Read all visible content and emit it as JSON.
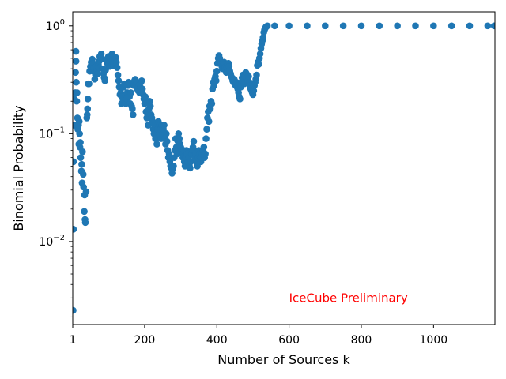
{
  "chart_data": {
    "type": "scatter",
    "xlabel": "Number of Sources k",
    "ylabel": "Binomial Probability",
    "xlim": [
      1,
      1170
    ],
    "ylim": [
      0.0017,
      1.35
    ],
    "yscale": "log",
    "x_ticks": [
      {
        "value": 1,
        "label": "1"
      },
      {
        "value": 200,
        "label": "200"
      },
      {
        "value": 400,
        "label": "400"
      },
      {
        "value": 600,
        "label": "600"
      },
      {
        "value": 800,
        "label": "800"
      },
      {
        "value": 1000,
        "label": "1000"
      }
    ],
    "y_ticks": [
      {
        "value": 0.01,
        "label": "10",
        "exp": "−2"
      },
      {
        "value": 0.1,
        "label": "10",
        "exp": "−1"
      },
      {
        "value": 1,
        "label": "10",
        "exp": "0"
      }
    ],
    "annotation": {
      "text": "IceCube Preliminary",
      "color": "#ff0000",
      "x": 600,
      "y": 0.003
    },
    "marker_color": "#1f77b4",
    "grid": false,
    "points": [
      [
        2,
        0.0023
      ],
      [
        3,
        0.013
      ],
      [
        3,
        0.055
      ],
      [
        4,
        0.12
      ],
      [
        5,
        0.21
      ],
      [
        7,
        0.12
      ],
      [
        8,
        0.24
      ],
      [
        9,
        0.37
      ],
      [
        10,
        0.47
      ],
      [
        10,
        0.58
      ],
      [
        11,
        0.3
      ],
      [
        12,
        0.2
      ],
      [
        13,
        0.24
      ],
      [
        14,
        0.14
      ],
      [
        15,
        0.11
      ],
      [
        17,
        0.12
      ],
      [
        18,
        0.08
      ],
      [
        19,
        0.13
      ],
      [
        20,
        0.1
      ],
      [
        21,
        0.075
      ],
      [
        22,
        0.083
      ],
      [
        23,
        0.06
      ],
      [
        25,
        0.045
      ],
      [
        26,
        0.052
      ],
      [
        27,
        0.035
      ],
      [
        28,
        0.068
      ],
      [
        30,
        0.042
      ],
      [
        31,
        0.032
      ],
      [
        33,
        0.019
      ],
      [
        34,
        0.027
      ],
      [
        35,
        0.016
      ],
      [
        36,
        0.015
      ],
      [
        38,
        0.029
      ],
      [
        40,
        0.14
      ],
      [
        41,
        0.15
      ],
      [
        42,
        0.17
      ],
      [
        43,
        0.21
      ],
      [
        44,
        0.29
      ],
      [
        46,
        0.29
      ],
      [
        48,
        0.38
      ],
      [
        50,
        0.42
      ],
      [
        52,
        0.46
      ],
      [
        54,
        0.47
      ],
      [
        55,
        0.49
      ],
      [
        57,
        0.45
      ],
      [
        58,
        0.38
      ],
      [
        60,
        0.41
      ],
      [
        62,
        0.32
      ],
      [
        64,
        0.35
      ],
      [
        66,
        0.42
      ],
      [
        68,
        0.38
      ],
      [
        70,
        0.36
      ],
      [
        72,
        0.44
      ],
      [
        74,
        0.47
      ],
      [
        75,
        0.41
      ],
      [
        76,
        0.52
      ],
      [
        78,
        0.49
      ],
      [
        80,
        0.55
      ],
      [
        82,
        0.5
      ],
      [
        84,
        0.4
      ],
      [
        86,
        0.36
      ],
      [
        88,
        0.33
      ],
      [
        90,
        0.31
      ],
      [
        92,
        0.39
      ],
      [
        94,
        0.48
      ],
      [
        96,
        0.46
      ],
      [
        98,
        0.44
      ],
      [
        100,
        0.52
      ],
      [
        102,
        0.45
      ],
      [
        104,
        0.42
      ],
      [
        106,
        0.49
      ],
      [
        108,
        0.5
      ],
      [
        110,
        0.55
      ],
      [
        112,
        0.5
      ],
      [
        114,
        0.43
      ],
      [
        116,
        0.45
      ],
      [
        118,
        0.49
      ],
      [
        120,
        0.51
      ],
      [
        122,
        0.46
      ],
      [
        124,
        0.41
      ],
      [
        126,
        0.35
      ],
      [
        128,
        0.31
      ],
      [
        130,
        0.27
      ],
      [
        132,
        0.23
      ],
      [
        134,
        0.24
      ],
      [
        136,
        0.19
      ],
      [
        138,
        0.22
      ],
      [
        140,
        0.21
      ],
      [
        142,
        0.27
      ],
      [
        144,
        0.29
      ],
      [
        146,
        0.23
      ],
      [
        148,
        0.19
      ],
      [
        150,
        0.21
      ],
      [
        152,
        0.24
      ],
      [
        154,
        0.28
      ],
      [
        156,
        0.3
      ],
      [
        158,
        0.22
      ],
      [
        160,
        0.19
      ],
      [
        162,
        0.24
      ],
      [
        164,
        0.18
      ],
      [
        166,
        0.17
      ],
      [
        168,
        0.15
      ],
      [
        170,
        0.28
      ],
      [
        172,
        0.31
      ],
      [
        174,
        0.32
      ],
      [
        176,
        0.29
      ],
      [
        178,
        0.3
      ],
      [
        180,
        0.26
      ],
      [
        182,
        0.25
      ],
      [
        184,
        0.28
      ],
      [
        186,
        0.24
      ],
      [
        188,
        0.27
      ],
      [
        190,
        0.3
      ],
      [
        192,
        0.31
      ],
      [
        194,
        0.26
      ],
      [
        196,
        0.23
      ],
      [
        198,
        0.21
      ],
      [
        200,
        0.19
      ],
      [
        202,
        0.22
      ],
      [
        204,
        0.16
      ],
      [
        206,
        0.14
      ],
      [
        208,
        0.15
      ],
      [
        210,
        0.12
      ],
      [
        212,
        0.17
      ],
      [
        214,
        0.2
      ],
      [
        216,
        0.18
      ],
      [
        218,
        0.15
      ],
      [
        220,
        0.14
      ],
      [
        222,
        0.13
      ],
      [
        224,
        0.11
      ],
      [
        226,
        0.1
      ],
      [
        228,
        0.12
      ],
      [
        230,
        0.09
      ],
      [
        232,
        0.1
      ],
      [
        234,
        0.08
      ],
      [
        236,
        0.11
      ],
      [
        238,
        0.13
      ],
      [
        240,
        0.1
      ],
      [
        242,
        0.12
      ],
      [
        244,
        0.11
      ],
      [
        246,
        0.09
      ],
      [
        248,
        0.12
      ],
      [
        250,
        0.1
      ],
      [
        252,
        0.11
      ],
      [
        254,
        0.12
      ],
      [
        256,
        0.09
      ],
      [
        258,
        0.08
      ],
      [
        260,
        0.1
      ],
      [
        262,
        0.085
      ],
      [
        264,
        0.07
      ],
      [
        266,
        0.06
      ],
      [
        268,
        0.065
      ],
      [
        270,
        0.055
      ],
      [
        272,
        0.05
      ],
      [
        274,
        0.048
      ],
      [
        276,
        0.043
      ],
      [
        278,
        0.047
      ],
      [
        280,
        0.05
      ],
      [
        282,
        0.06
      ],
      [
        284,
        0.07
      ],
      [
        286,
        0.09
      ],
      [
        288,
        0.075
      ],
      [
        290,
        0.065
      ],
      [
        292,
        0.085
      ],
      [
        294,
        0.1
      ],
      [
        296,
        0.09
      ],
      [
        298,
        0.08
      ],
      [
        300,
        0.075
      ],
      [
        302,
        0.07
      ],
      [
        304,
        0.065
      ],
      [
        306,
        0.06
      ],
      [
        308,
        0.07
      ],
      [
        310,
        0.055
      ],
      [
        312,
        0.05
      ],
      [
        314,
        0.06
      ],
      [
        316,
        0.07
      ],
      [
        318,
        0.065
      ],
      [
        320,
        0.055
      ],
      [
        322,
        0.06
      ],
      [
        324,
        0.05
      ],
      [
        326,
        0.048
      ],
      [
        328,
        0.055
      ],
      [
        330,
        0.065
      ],
      [
        332,
        0.07
      ],
      [
        334,
        0.075
      ],
      [
        336,
        0.085
      ],
      [
        338,
        0.07
      ],
      [
        340,
        0.06
      ],
      [
        342,
        0.065
      ],
      [
        344,
        0.055
      ],
      [
        346,
        0.05
      ],
      [
        348,
        0.06
      ],
      [
        350,
        0.07
      ],
      [
        352,
        0.065
      ],
      [
        354,
        0.06
      ],
      [
        356,
        0.055
      ],
      [
        358,
        0.06
      ],
      [
        360,
        0.065
      ],
      [
        362,
        0.07
      ],
      [
        364,
        0.075
      ],
      [
        366,
        0.06
      ],
      [
        368,
        0.065
      ],
      [
        370,
        0.09
      ],
      [
        372,
        0.11
      ],
      [
        374,
        0.14
      ],
      [
        376,
        0.16
      ],
      [
        378,
        0.13
      ],
      [
        380,
        0.18
      ],
      [
        382,
        0.17
      ],
      [
        384,
        0.2
      ],
      [
        386,
        0.19
      ],
      [
        388,
        0.26
      ],
      [
        390,
        0.3
      ],
      [
        392,
        0.28
      ],
      [
        394,
        0.32
      ],
      [
        396,
        0.34
      ],
      [
        398,
        0.31
      ],
      [
        400,
        0.38
      ],
      [
        402,
        0.45
      ],
      [
        404,
        0.5
      ],
      [
        406,
        0.53
      ],
      [
        408,
        0.5
      ],
      [
        410,
        0.47
      ],
      [
        412,
        0.44
      ],
      [
        414,
        0.42
      ],
      [
        416,
        0.4
      ],
      [
        418,
        0.43
      ],
      [
        420,
        0.46
      ],
      [
        422,
        0.41
      ],
      [
        424,
        0.39
      ],
      [
        426,
        0.37
      ],
      [
        428,
        0.41
      ],
      [
        430,
        0.44
      ],
      [
        432,
        0.45
      ],
      [
        434,
        0.42
      ],
      [
        436,
        0.38
      ],
      [
        438,
        0.36
      ],
      [
        440,
        0.34
      ],
      [
        442,
        0.33
      ],
      [
        444,
        0.31
      ],
      [
        446,
        0.3
      ],
      [
        448,
        0.32
      ],
      [
        450,
        0.29
      ],
      [
        452,
        0.28
      ],
      [
        454,
        0.3
      ],
      [
        456,
        0.27
      ],
      [
        458,
        0.26
      ],
      [
        460,
        0.24
      ],
      [
        462,
        0.22
      ],
      [
        464,
        0.21
      ],
      [
        466,
        0.27
      ],
      [
        468,
        0.3
      ],
      [
        470,
        0.33
      ],
      [
        472,
        0.35
      ],
      [
        474,
        0.31
      ],
      [
        476,
        0.29
      ],
      [
        478,
        0.34
      ],
      [
        480,
        0.37
      ],
      [
        482,
        0.36
      ],
      [
        484,
        0.33
      ],
      [
        486,
        0.31
      ],
      [
        488,
        0.34
      ],
      [
        490,
        0.3
      ],
      [
        492,
        0.28
      ],
      [
        494,
        0.26
      ],
      [
        496,
        0.25
      ],
      [
        498,
        0.24
      ],
      [
        500,
        0.23
      ],
      [
        502,
        0.25
      ],
      [
        504,
        0.28
      ],
      [
        506,
        0.3
      ],
      [
        508,
        0.32
      ],
      [
        510,
        0.35
      ],
      [
        512,
        0.43
      ],
      [
        514,
        0.46
      ],
      [
        516,
        0.44
      ],
      [
        518,
        0.5
      ],
      [
        520,
        0.55
      ],
      [
        522,
        0.62
      ],
      [
        524,
        0.68
      ],
      [
        526,
        0.73
      ],
      [
        528,
        0.78
      ],
      [
        530,
        0.87
      ],
      [
        532,
        0.92
      ],
      [
        534,
        0.95
      ],
      [
        536,
        0.98
      ],
      [
        538,
        0.99
      ],
      [
        540,
        1.0
      ],
      [
        560,
        1.0
      ],
      [
        600,
        1.0
      ],
      [
        650,
        1.0
      ],
      [
        700,
        1.0
      ],
      [
        750,
        1.0
      ],
      [
        800,
        1.0
      ],
      [
        850,
        1.0
      ],
      [
        900,
        1.0
      ],
      [
        950,
        1.0
      ],
      [
        1000,
        1.0
      ],
      [
        1050,
        1.0
      ],
      [
        1100,
        1.0
      ],
      [
        1150,
        1.0
      ],
      [
        1168,
        1.0
      ]
    ]
  }
}
